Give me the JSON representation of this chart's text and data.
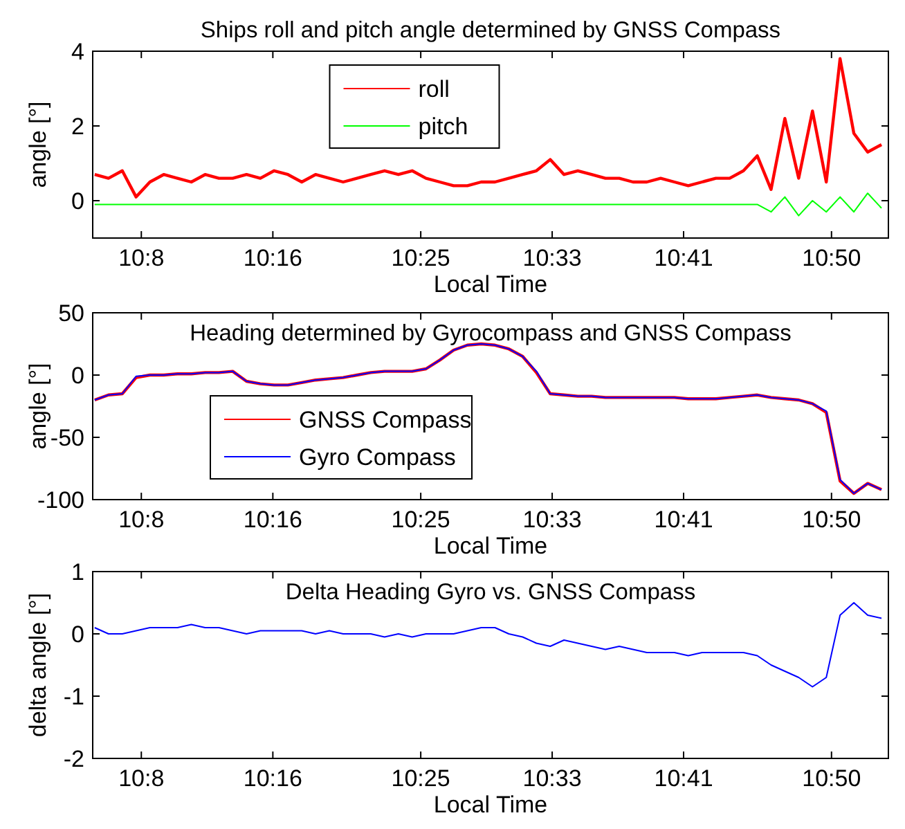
{
  "chart_data": [
    {
      "type": "line",
      "title": "Ships roll and pitch angle determined by GNSS Compass",
      "xlabel": "Local Time",
      "ylabel": "angle [°]",
      "xlim": [
        10.084,
        10.891
      ],
      "ylim": [
        -1,
        4
      ],
      "yticks": [
        0,
        2,
        4
      ],
      "xticks": [
        {
          "value": 10.1333,
          "label": "10:8"
        },
        {
          "value": 10.2667,
          "label": "10:16"
        },
        {
          "value": 10.4167,
          "label": "10:25"
        },
        {
          "value": 10.55,
          "label": "10:33"
        },
        {
          "value": 10.6833,
          "label": "10:41"
        },
        {
          "value": 10.8333,
          "label": "10:50"
        }
      ],
      "grid": false,
      "legend": "top",
      "line_style": "solid",
      "marker": "none",
      "x": [
        10.086,
        10.1,
        10.114,
        10.128,
        10.142,
        10.156,
        10.17,
        10.184,
        10.198,
        10.212,
        10.226,
        10.24,
        10.254,
        10.268,
        10.282,
        10.296,
        10.31,
        10.324,
        10.338,
        10.352,
        10.366,
        10.38,
        10.394,
        10.408,
        10.422,
        10.436,
        10.45,
        10.464,
        10.478,
        10.492,
        10.506,
        10.52,
        10.534,
        10.548,
        10.562,
        10.576,
        10.59,
        10.604,
        10.618,
        10.632,
        10.646,
        10.66,
        10.674,
        10.688,
        10.702,
        10.716,
        10.73,
        10.744,
        10.758,
        10.772,
        10.786,
        10.8,
        10.814,
        10.828,
        10.842,
        10.856,
        10.87,
        10.884
      ],
      "series": [
        {
          "name": "roll",
          "color": "#ff0000",
          "values": [
            0.7,
            0.6,
            0.8,
            0.1,
            0.5,
            0.7,
            0.6,
            0.5,
            0.7,
            0.6,
            0.6,
            0.7,
            0.6,
            0.8,
            0.7,
            0.5,
            0.7,
            0.6,
            0.5,
            0.6,
            0.7,
            0.8,
            0.7,
            0.8,
            0.6,
            0.5,
            0.4,
            0.4,
            0.5,
            0.5,
            0.6,
            0.7,
            0.8,
            1.1,
            0.7,
            0.8,
            0.7,
            0.6,
            0.6,
            0.5,
            0.5,
            0.6,
            0.5,
            0.4,
            0.5,
            0.6,
            0.6,
            0.8,
            1.2,
            0.3,
            2.2,
            0.6,
            2.4,
            0.5,
            3.8,
            1.8,
            1.3,
            1.5
          ]
        },
        {
          "name": "pitch",
          "color": "#00ff00",
          "values": [
            -0.1,
            -0.1,
            -0.1,
            -0.1,
            -0.1,
            -0.1,
            -0.1,
            -0.1,
            -0.1,
            -0.1,
            -0.1,
            -0.1,
            -0.1,
            -0.1,
            -0.1,
            -0.1,
            -0.1,
            -0.1,
            -0.1,
            -0.1,
            -0.1,
            -0.1,
            -0.1,
            -0.1,
            -0.1,
            -0.1,
            -0.1,
            -0.1,
            -0.1,
            -0.1,
            -0.1,
            -0.1,
            -0.1,
            -0.1,
            -0.1,
            -0.1,
            -0.1,
            -0.1,
            -0.1,
            -0.1,
            -0.1,
            -0.1,
            -0.1,
            -0.1,
            -0.1,
            -0.1,
            -0.1,
            -0.1,
            -0.1,
            -0.3,
            0.1,
            -0.4,
            0.0,
            -0.3,
            0.1,
            -0.3,
            0.2,
            -0.2
          ]
        }
      ]
    },
    {
      "type": "line",
      "title": "Heading determined by Gyrocompass and GNSS Compass",
      "xlabel": "Local Time",
      "ylabel": "angle [°]",
      "xlim": [
        10.084,
        10.891
      ],
      "ylim": [
        -100,
        50
      ],
      "yticks": [
        -100,
        -50,
        0,
        50
      ],
      "xticks": [
        {
          "value": 10.1333,
          "label": "10:8"
        },
        {
          "value": 10.2667,
          "label": "10:16"
        },
        {
          "value": 10.4167,
          "label": "10:25"
        },
        {
          "value": 10.55,
          "label": "10:33"
        },
        {
          "value": 10.6833,
          "label": "10:41"
        },
        {
          "value": 10.8333,
          "label": "10:50"
        }
      ],
      "grid": false,
      "legend": "bottom left",
      "line_style": "solid",
      "marker": "none",
      "x": [
        10.086,
        10.1,
        10.114,
        10.128,
        10.142,
        10.156,
        10.17,
        10.184,
        10.198,
        10.212,
        10.226,
        10.24,
        10.254,
        10.268,
        10.282,
        10.296,
        10.31,
        10.324,
        10.338,
        10.352,
        10.366,
        10.38,
        10.394,
        10.408,
        10.422,
        10.436,
        10.45,
        10.464,
        10.478,
        10.492,
        10.506,
        10.52,
        10.534,
        10.548,
        10.562,
        10.576,
        10.59,
        10.604,
        10.618,
        10.632,
        10.646,
        10.66,
        10.674,
        10.688,
        10.702,
        10.716,
        10.73,
        10.744,
        10.758,
        10.772,
        10.786,
        10.8,
        10.814,
        10.828,
        10.842,
        10.856,
        10.87,
        10.884
      ],
      "series": [
        {
          "name": "GNSS Compass",
          "color": "#ff0000",
          "values": [
            -20,
            -16,
            -15,
            -2,
            0,
            0,
            1,
            1,
            2,
            2,
            3,
            -5,
            -7,
            -8,
            -8,
            -6,
            -4,
            -3,
            -2,
            0,
            2,
            3,
            3,
            3,
            5,
            12,
            20,
            24,
            25,
            24,
            21,
            15,
            2,
            -15,
            -16,
            -17,
            -17,
            -18,
            -18,
            -18,
            -18,
            -18,
            -18,
            -19,
            -19,
            -19,
            -18,
            -17,
            -16,
            -18,
            -19,
            -20,
            -23,
            -30,
            -85,
            -95,
            -87,
            -92
          ]
        },
        {
          "name": "Gyro Compass",
          "color": "#0000ff",
          "values": [
            -20,
            -16,
            -15,
            -1,
            0,
            0,
            1,
            1,
            2,
            2,
            3,
            -5,
            -7,
            -8,
            -8,
            -6,
            -4,
            -3,
            -2,
            0,
            2,
            3,
            3,
            3,
            5,
            12,
            20,
            24,
            25,
            24,
            21,
            15,
            3,
            -15,
            -16,
            -17,
            -17,
            -18,
            -18,
            -18,
            -18,
            -18,
            -18,
            -19,
            -19,
            -19,
            -18,
            -17,
            -16,
            -18,
            -19,
            -20,
            -23,
            -29,
            -84,
            -95,
            -87,
            -92
          ]
        }
      ]
    },
    {
      "type": "line",
      "title": "Delta Heading Gyro vs. GNSS Compass",
      "xlabel": "Local Time",
      "ylabel": "delta angle [°]",
      "xlim": [
        10.084,
        10.891
      ],
      "ylim": [
        -2,
        1
      ],
      "yticks": [
        -2,
        -1,
        0,
        1
      ],
      "xticks": [
        {
          "value": 10.1333,
          "label": "10:8"
        },
        {
          "value": 10.2667,
          "label": "10:16"
        },
        {
          "value": 10.4167,
          "label": "10:25"
        },
        {
          "value": 10.55,
          "label": "10:33"
        },
        {
          "value": 10.6833,
          "label": "10:41"
        },
        {
          "value": 10.8333,
          "label": "10:50"
        }
      ],
      "grid": false,
      "line_style": "solid",
      "marker": "none",
      "x": [
        10.086,
        10.1,
        10.114,
        10.128,
        10.142,
        10.156,
        10.17,
        10.184,
        10.198,
        10.212,
        10.226,
        10.24,
        10.254,
        10.268,
        10.282,
        10.296,
        10.31,
        10.324,
        10.338,
        10.352,
        10.366,
        10.38,
        10.394,
        10.408,
        10.422,
        10.436,
        10.45,
        10.464,
        10.478,
        10.492,
        10.506,
        10.52,
        10.534,
        10.548,
        10.562,
        10.576,
        10.59,
        10.604,
        10.618,
        10.632,
        10.646,
        10.66,
        10.674,
        10.688,
        10.702,
        10.716,
        10.73,
        10.744,
        10.758,
        10.772,
        10.786,
        10.8,
        10.814,
        10.828,
        10.842,
        10.856,
        10.87,
        10.884
      ],
      "series": [
        {
          "color": "#0000ff",
          "values": [
            0.1,
            0.0,
            0.0,
            0.05,
            0.1,
            0.1,
            0.1,
            0.15,
            0.1,
            0.1,
            0.05,
            0.0,
            0.05,
            0.05,
            0.05,
            0.05,
            0.0,
            0.05,
            0.0,
            0.0,
            0.0,
            -0.05,
            0.0,
            -0.05,
            0.0,
            0.0,
            0.0,
            0.05,
            0.1,
            0.1,
            0.0,
            -0.05,
            -0.15,
            -0.2,
            -0.1,
            -0.15,
            -0.2,
            -0.25,
            -0.2,
            -0.25,
            -0.3,
            -0.3,
            -0.3,
            -0.35,
            -0.3,
            -0.3,
            -0.3,
            -0.3,
            -0.35,
            -0.5,
            -0.6,
            -0.7,
            -0.85,
            -0.7,
            0.3,
            0.5,
            0.3,
            0.25
          ]
        }
      ]
    }
  ]
}
